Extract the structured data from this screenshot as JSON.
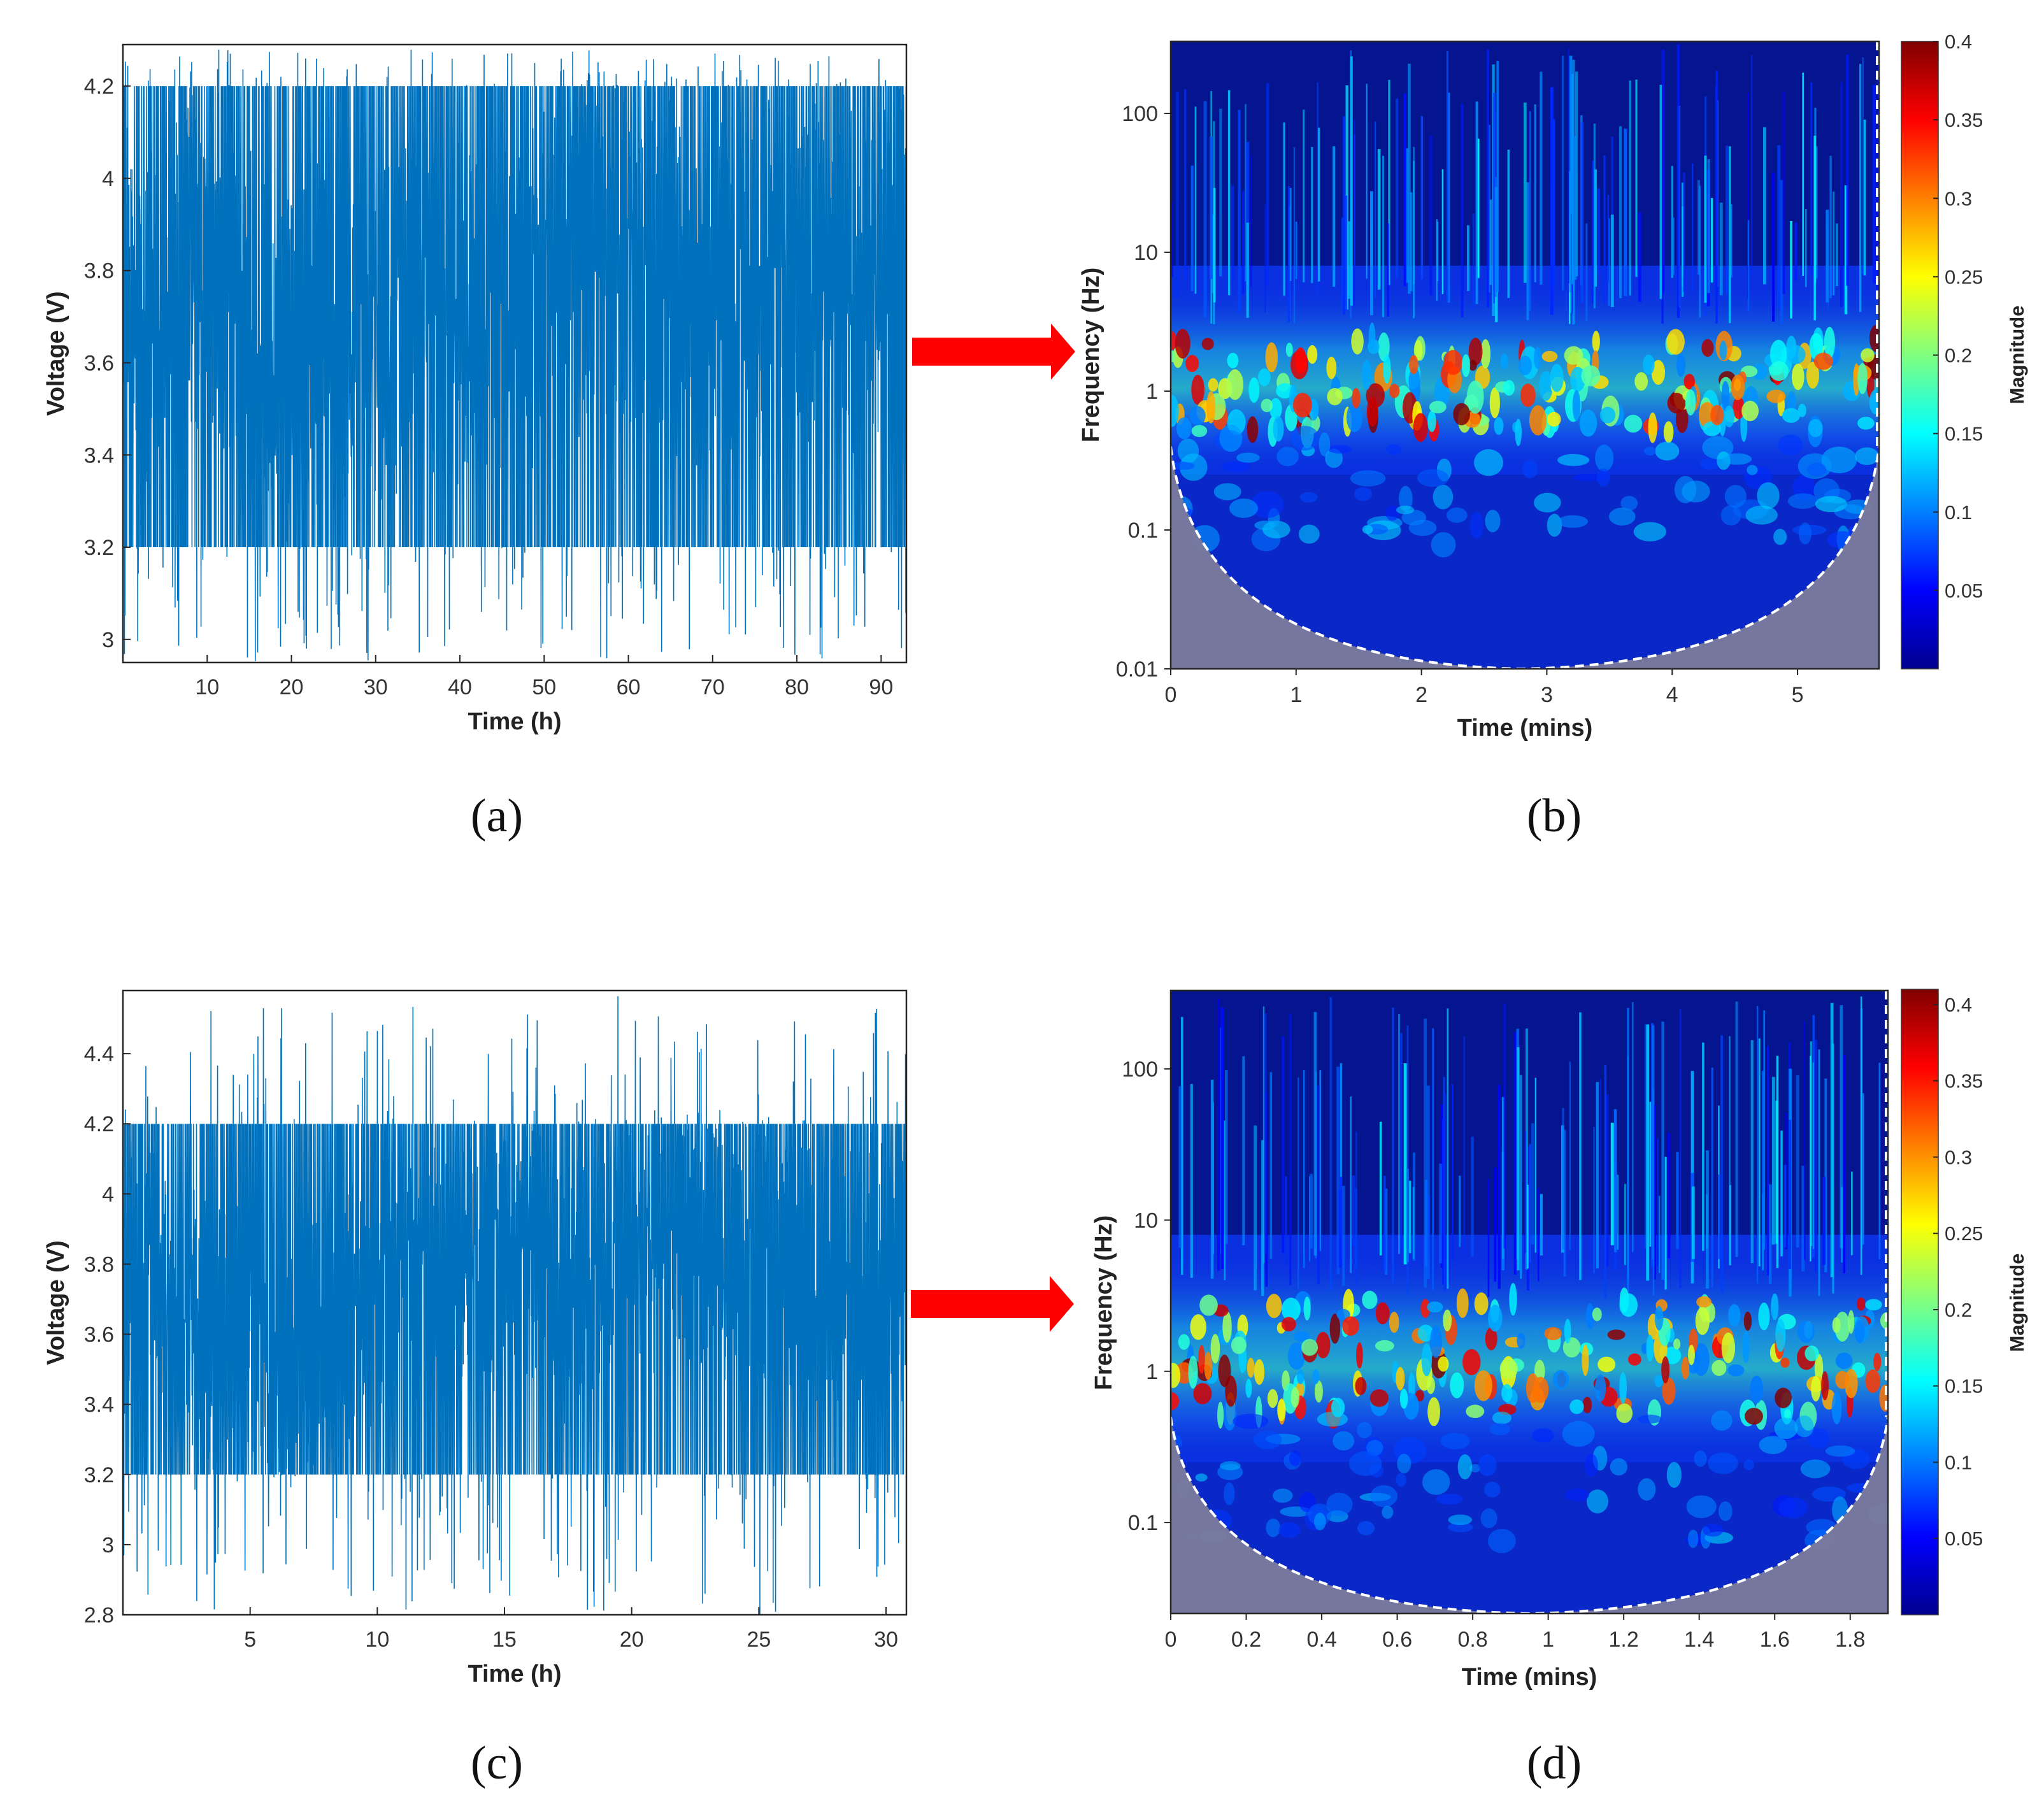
{
  "figure": {
    "labels": {
      "a": "(a)",
      "b": "(b)",
      "c": "(c)",
      "d": "(d)"
    }
  },
  "arrow": {
    "color": "#ff0000"
  },
  "chart_data": [
    {
      "id": "a",
      "type": "line",
      "title": "",
      "xlabel": "Time (h)",
      "ylabel": "Voltage (V)",
      "xlim": [
        0,
        93
      ],
      "ylim": [
        2.95,
        4.29
      ],
      "xticks": [
        "10",
        "20",
        "30",
        "40",
        "50",
        "60",
        "70",
        "80",
        "90"
      ],
      "yticks": [
        "3",
        "3.2",
        "3.4",
        "3.6",
        "3.8",
        "4",
        "4.2"
      ],
      "color": "#0072bd",
      "series": [
        {
          "description_of_values": "dense voltage cycling signal",
          "upper_plateau_v": 4.2,
          "lower_plateau_v": 3.2,
          "min_v": 2.95,
          "max_v": 4.28,
          "dense_band_v": [
            3.55,
            3.95
          ]
        }
      ]
    },
    {
      "id": "b",
      "type": "heatmap",
      "title": "",
      "xlabel": "Time (mins)",
      "ylabel": "Frequency (Hz)",
      "xlim": [
        0,
        5.65
      ],
      "ylim_hz": [
        0.01,
        330
      ],
      "yscale": "log",
      "xticks": [
        "0",
        "1",
        "2",
        "3",
        "4",
        "5"
      ],
      "yticks": [
        "0.01",
        "0.1",
        "1",
        "10",
        "100"
      ],
      "colorbar": {
        "label": "Magnitude",
        "range": [
          0,
          0.4
        ],
        "ticks": [
          "0.05",
          "0.1",
          "0.15",
          "0.2",
          "0.25",
          "0.3",
          "0.35",
          "0.4"
        ],
        "colormap": "jet"
      },
      "cone_of_influence": {
        "min_freq_hz": 0.01,
        "min_at_time_min": 2.8,
        "color": "#7a7a9c"
      },
      "peak_band_hz": [
        0.5,
        2.5
      ]
    },
    {
      "id": "c",
      "type": "line",
      "title": "",
      "xlabel": "Time (h)",
      "ylabel": "Voltage (V)",
      "xlim": [
        0,
        30.8
      ],
      "ylim": [
        2.8,
        4.58
      ],
      "xticks": [
        "5",
        "10",
        "15",
        "20",
        "25",
        "30"
      ],
      "yticks": [
        "2.8",
        "3",
        "3.2",
        "3.4",
        "3.6",
        "3.8",
        "4",
        "4.2",
        "4.4"
      ],
      "color": "#0072bd",
      "series": [
        {
          "description_of_values": "dense voltage cycling signal",
          "upper_plateau_v": 4.2,
          "lower_plateau_v": 3.2,
          "min_v": 2.8,
          "max_v": 4.57,
          "dense_band_v": [
            3.5,
            3.95
          ]
        }
      ]
    },
    {
      "id": "d",
      "type": "heatmap",
      "title": "",
      "xlabel": "Time (mins)",
      "ylabel": "Frequency (Hz)",
      "xlim": [
        0,
        1.9
      ],
      "ylim_hz": [
        0.025,
        330
      ],
      "yscale": "log",
      "xticks": [
        "0",
        "0.2",
        "0.4",
        "0.6",
        "0.8",
        "1",
        "1.2",
        "1.4",
        "1.6",
        "1.8"
      ],
      "yticks": [
        "0.1",
        "1",
        "10",
        "100"
      ],
      "colorbar": {
        "label": "Magnitude",
        "range": [
          0,
          0.41
        ],
        "ticks": [
          "0.05",
          "0.1",
          "0.15",
          "0.2",
          "0.25",
          "0.3",
          "0.35",
          "0.4"
        ],
        "colormap": "jet"
      },
      "cone_of_influence": {
        "min_freq_hz": 0.025,
        "min_at_time_min": 0.95,
        "color": "#7a7a9c"
      },
      "peak_band_hz": [
        0.5,
        3
      ]
    }
  ]
}
